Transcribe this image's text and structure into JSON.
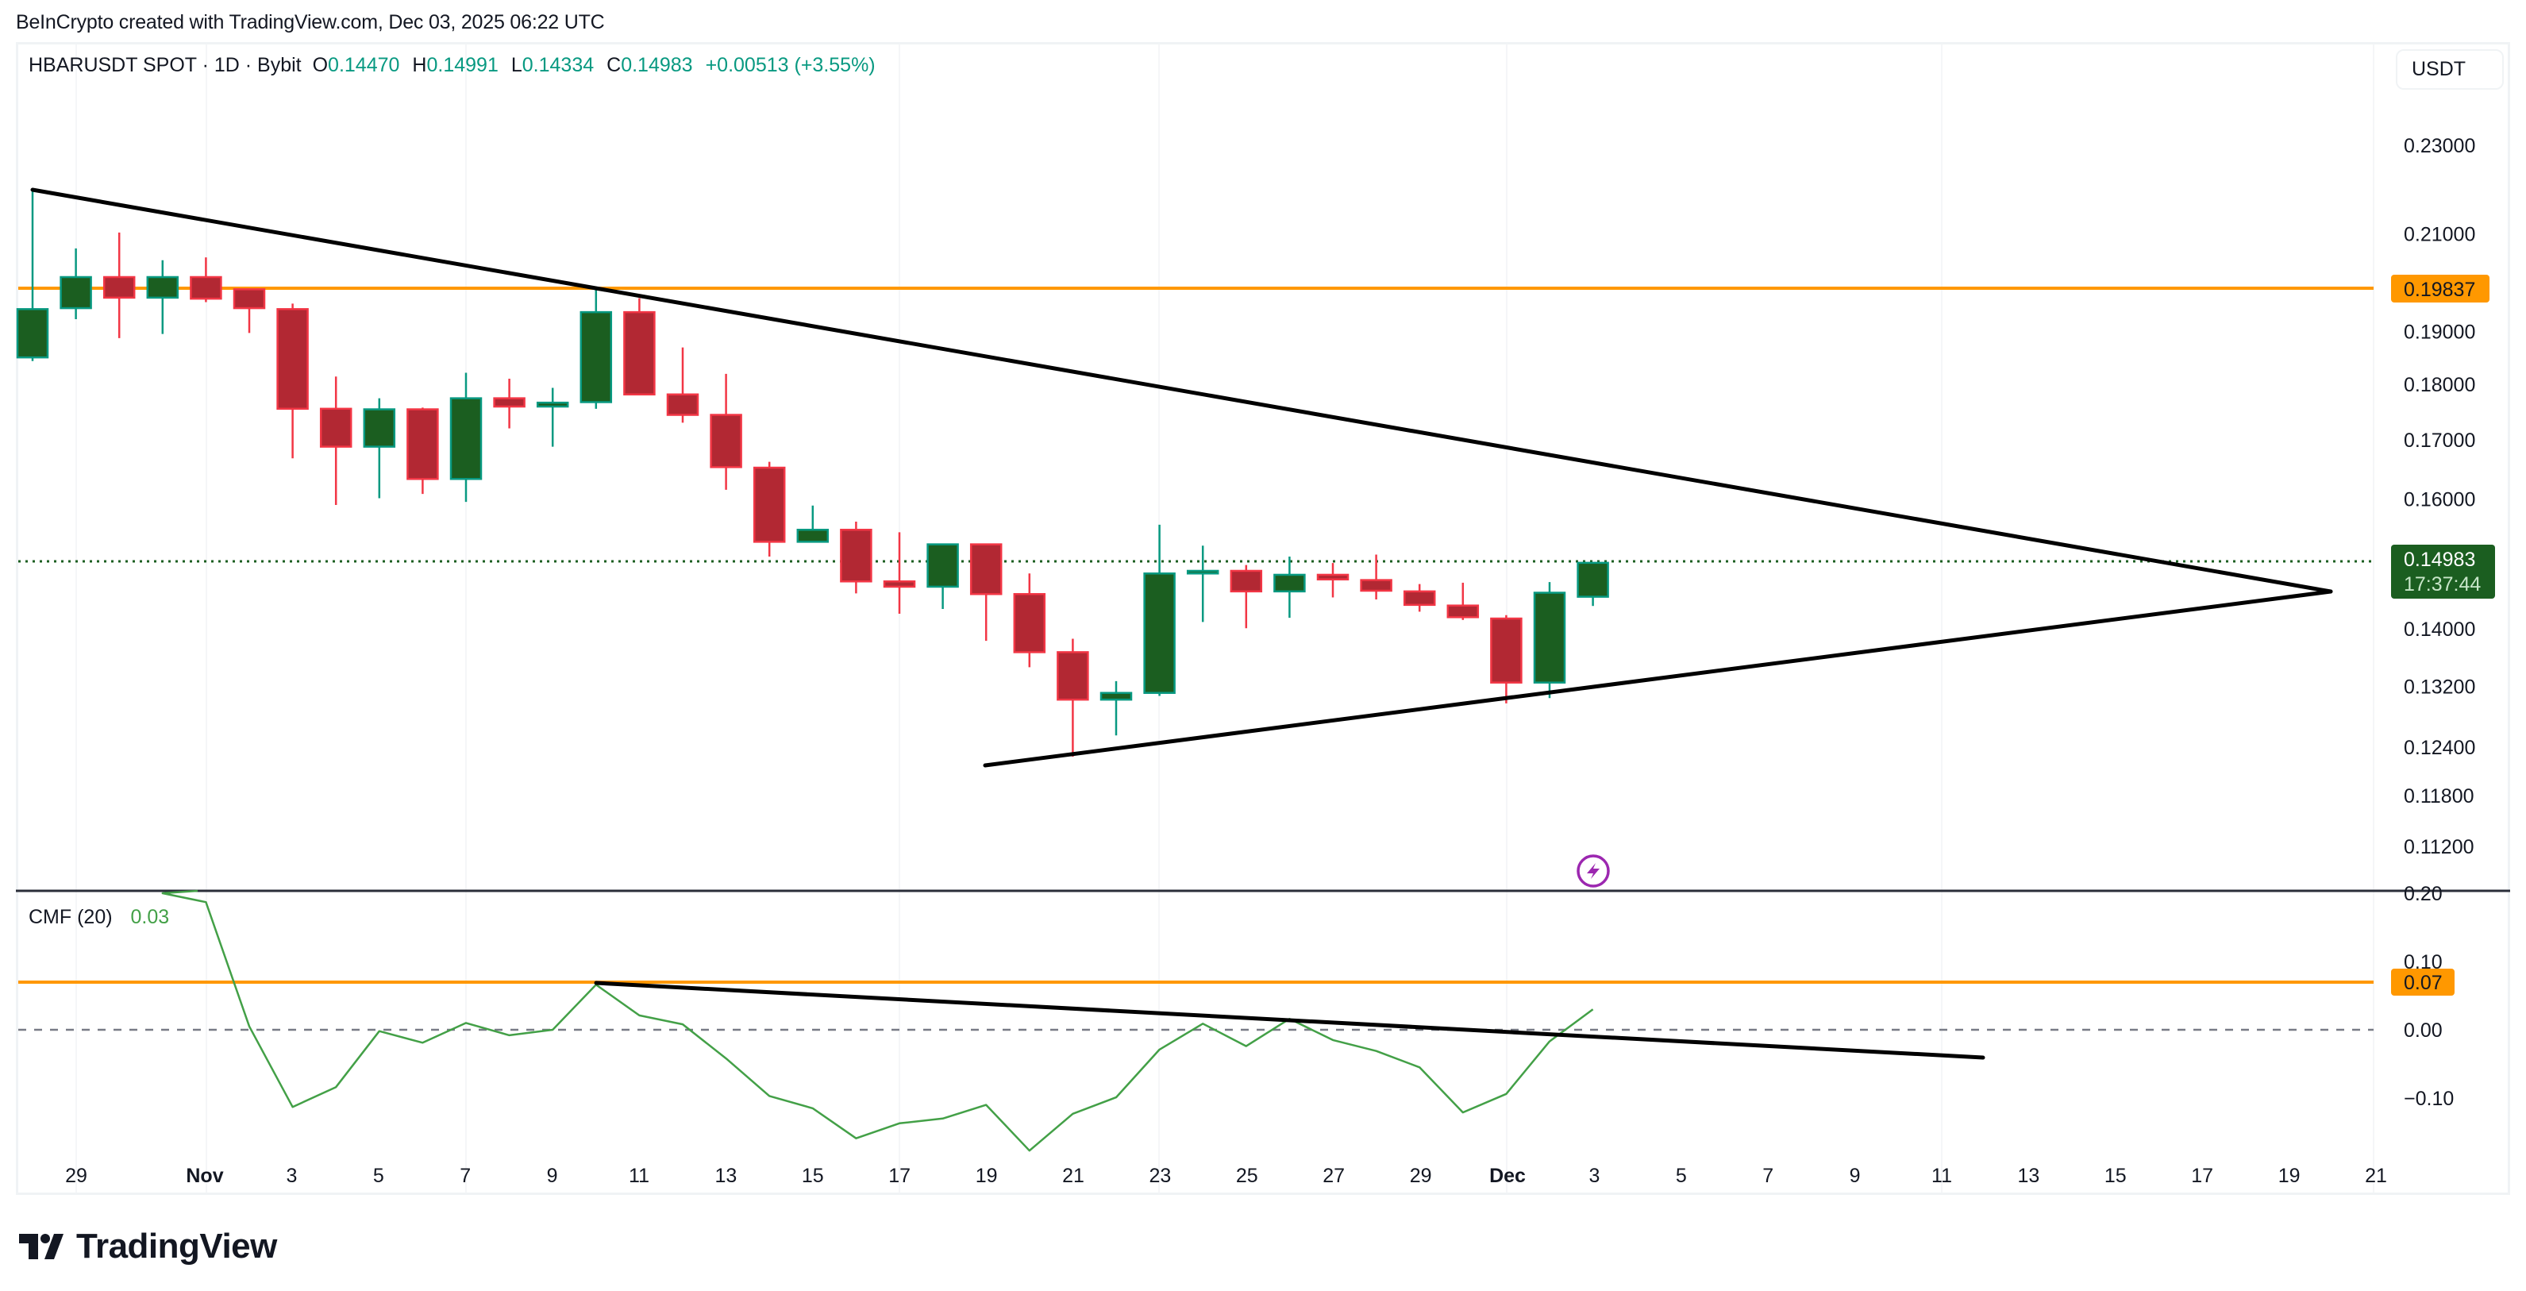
{
  "attribution": "BeInCrypto created with TradingView.com, Dec 03, 2025 06:22 UTC",
  "legend": {
    "symbol": "HBARUSDT SPOT · 1D · Bybit",
    "open_label": "O",
    "open": "0.14470",
    "high_label": "H",
    "high": "0.14991",
    "low_label": "L",
    "low": "0.14334",
    "close_label": "C",
    "close": "0.14983",
    "change": "+0.00513 (+3.55%)"
  },
  "currency_button": "USDT",
  "indicator": {
    "name": "CMF (20)",
    "value": "0.03"
  },
  "price_axis": {
    "ticks": [
      "0.23000",
      "0.21000",
      "0.19000",
      "0.18000",
      "0.17000",
      "0.16000",
      "0.14000",
      "0.13200",
      "0.12400",
      "0.11800",
      "0.11200"
    ],
    "resistance_tag": "0.19837",
    "last_price_tag": "0.14983",
    "countdown_tag": "17:37:44"
  },
  "cmf_axis": {
    "ticks": [
      "0.20",
      "0.10",
      "0.00",
      "−0.10"
    ],
    "level_tag": "0.07"
  },
  "time_axis": [
    "29",
    "Nov",
    "3",
    "5",
    "7",
    "9",
    "11",
    "13",
    "15",
    "17",
    "19",
    "21",
    "23",
    "25",
    "27",
    "29",
    "Dec",
    "3",
    "5",
    "7",
    "9",
    "11",
    "13",
    "15",
    "17",
    "19",
    "21"
  ],
  "logo_text": "TradingView",
  "colors": {
    "up_body": "#1b5e20",
    "up_border": "#089981",
    "down_body": "#b22833",
    "down_border": "#f23645",
    "resistance": "#ff9800",
    "trendline": "#000000",
    "cmf_line": "#43a047",
    "last_price": "#1b5e20",
    "event_icon": "#9c27b0"
  },
  "chart_data": [
    {
      "type": "candlestick",
      "title": "HBARUSDT SPOT · 1D · Bybit",
      "ylabel": "USDT",
      "y_scale": "log",
      "ylim": [
        0.108,
        0.236
      ],
      "x": [
        "Oct 28",
        "Oct 29",
        "Oct 30",
        "Oct 31",
        "Nov 1",
        "Nov 2",
        "Nov 3",
        "Nov 4",
        "Nov 5",
        "Nov 6",
        "Nov 7",
        "Nov 8",
        "Nov 9",
        "Nov 10",
        "Nov 11",
        "Nov 12",
        "Nov 13",
        "Nov 14",
        "Nov 15",
        "Nov 16",
        "Nov 17",
        "Nov 18",
        "Nov 19",
        "Nov 20",
        "Nov 21",
        "Nov 22",
        "Nov 23",
        "Nov 24",
        "Nov 25",
        "Nov 26",
        "Nov 27",
        "Nov 28",
        "Nov 29",
        "Nov 30",
        "Dec 1",
        "Dec 2",
        "Dec 3"
      ],
      "ohlc": [
        [
          0.185,
          0.2197,
          0.1843,
          0.1944
        ],
        [
          0.1946,
          0.2069,
          0.1924,
          0.2009
        ],
        [
          0.2009,
          0.2103,
          0.1887,
          0.1967
        ],
        [
          0.1967,
          0.2044,
          0.1895,
          0.2009
        ],
        [
          0.2009,
          0.205,
          0.1958,
          0.1965
        ],
        [
          0.1984,
          0.1984,
          0.1897,
          0.1946
        ],
        [
          0.1944,
          0.1955,
          0.1668,
          0.1755
        ],
        [
          0.1755,
          0.1814,
          0.159,
          0.1688
        ],
        [
          0.1688,
          0.1774,
          0.1601,
          0.1754
        ],
        [
          0.1754,
          0.1757,
          0.1608,
          0.1633
        ],
        [
          0.1633,
          0.1821,
          0.1595,
          0.1774
        ],
        [
          0.1774,
          0.181,
          0.172,
          0.1759
        ],
        [
          0.1759,
          0.1793,
          0.1688,
          0.1766
        ],
        [
          0.1767,
          0.1988,
          0.1755,
          0.1938
        ],
        [
          0.1938,
          0.1966,
          0.1781,
          0.1781
        ],
        [
          0.1781,
          0.1869,
          0.173,
          0.1744
        ],
        [
          0.1744,
          0.1819,
          0.1615,
          0.1653
        ],
        [
          0.1652,
          0.1662,
          0.1508,
          0.1531
        ],
        [
          0.1531,
          0.1589,
          0.155,
          0.155
        ],
        [
          0.155,
          0.1563,
          0.1452,
          0.147
        ],
        [
          0.147,
          0.1546,
          0.1422,
          0.1462
        ],
        [
          0.1462,
          0.1527,
          0.1429,
          0.1527
        ],
        [
          0.1527,
          0.1527,
          0.1383,
          0.1451
        ],
        [
          0.1451,
          0.1482,
          0.1346,
          0.1367
        ],
        [
          0.1367,
          0.1386,
          0.1228,
          0.1302
        ],
        [
          0.1302,
          0.1327,
          0.1255,
          0.1311
        ],
        [
          0.1311,
          0.1558,
          0.1307,
          0.1482
        ],
        [
          0.1482,
          0.1525,
          0.141,
          0.1486
        ],
        [
          0.1486,
          0.1495,
          0.1401,
          0.1455
        ],
        [
          0.1455,
          0.1508,
          0.1416,
          0.148
        ],
        [
          0.148,
          0.1498,
          0.1446,
          0.1473
        ],
        [
          0.1472,
          0.1511,
          0.1443,
          0.1456
        ],
        [
          0.1455,
          0.1466,
          0.1425,
          0.1435
        ],
        [
          0.1434,
          0.1468,
          0.1413,
          0.1417
        ],
        [
          0.1415,
          0.142,
          0.1297,
          0.1325
        ],
        [
          0.1325,
          0.1469,
          0.1304,
          0.1453
        ],
        [
          0.1447,
          0.14991,
          0.14334,
          0.14983
        ]
      ],
      "horizontal_lines": [
        {
          "label": "Resistance",
          "value": 0.19837,
          "color": "#ff9800"
        }
      ],
      "last_price": 0.14983,
      "trendlines": [
        {
          "name": "upper descending",
          "from": [
            "Oct 28",
            0.2197
          ],
          "to": [
            "Dec 20",
            0.1458
          ]
        },
        {
          "name": "lower ascending",
          "from": [
            "Nov 19",
            0.121
          ],
          "to": [
            "Dec 20",
            0.1458
          ]
        }
      ],
      "pattern": "symmetrical triangle",
      "xlim": [
        "Oct 27",
        "Dec 22"
      ]
    },
    {
      "type": "line",
      "title": "CMF (20)",
      "ylim": [
        -0.21,
        0.21
      ],
      "yticks": [
        0.2,
        0.1,
        0.0,
        -0.1
      ],
      "x": [
        "Oct 28",
        "Oct 29",
        "Oct 30",
        "Oct 31",
        "Nov 1",
        "Nov 2",
        "Nov 3",
        "Nov 4",
        "Nov 5",
        "Nov 6",
        "Nov 7",
        "Nov 8",
        "Nov 9",
        "Nov 10",
        "Nov 11",
        "Nov 12",
        "Nov 13",
        "Nov 14",
        "Nov 15",
        "Nov 16",
        "Nov 17",
        "Nov 18",
        "Nov 19",
        "Nov 20",
        "Nov 21",
        "Nov 22",
        "Nov 23",
        "Nov 24",
        "Nov 25",
        "Nov 26",
        "Nov 27",
        "Nov 28",
        "Nov 29",
        "Nov 30",
        "Dec 1",
        "Dec 2",
        "Dec 3"
      ],
      "series": [
        {
          "name": "CMF (20)",
          "values": [
            null,
            null,
            null,
            0.2,
            0.187,
            0.005,
            -0.113,
            -0.084,
            -0.002,
            -0.019,
            0.01,
            -0.008,
            0.0,
            0.066,
            0.021,
            0.008,
            -0.042,
            -0.097,
            -0.115,
            -0.159,
            -0.137,
            -0.13,
            -0.11,
            -0.177,
            -0.123,
            -0.099,
            -0.029,
            0.009,
            -0.024,
            0.016,
            -0.015,
            -0.031,
            -0.055,
            -0.121,
            -0.094,
            -0.017,
            0.03
          ]
        }
      ],
      "horizontal_lines": [
        {
          "value": 0.07,
          "color": "#ff9800"
        },
        {
          "value": 0.0,
          "style": "dashed",
          "color": "#787b86"
        }
      ],
      "trendlines": [
        {
          "name": "descending",
          "from": [
            "Nov 10",
            0.068
          ],
          "to": [
            "Dec 12",
            -0.041
          ]
        }
      ]
    }
  ]
}
